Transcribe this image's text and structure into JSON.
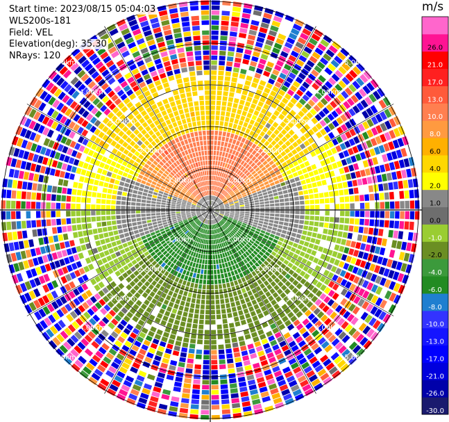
{
  "header": {
    "start_time": "Start time: 2023/08/15 05:04:03",
    "station": "WLS200s-181",
    "field": "Field: VEL",
    "elevation": "Elevation(deg): 35.30",
    "nrays": "NRays: 120"
  },
  "chart_data": {
    "type": "heatmap",
    "projection": "polar-ppi",
    "field": "VEL",
    "units": "m/s",
    "n_rays": 120,
    "elevation_deg": 35.3,
    "range_rings_km": [
      1.0,
      2.0,
      3.0,
      4.0,
      5.0
    ],
    "ring_labels": [
      "1.00km",
      "2.00km",
      "3.00km",
      "4.00km",
      "5.00km"
    ],
    "color_scale": {
      "boundaries": [
        -30.0,
        -26.0,
        -21.0,
        -17.0,
        -13.0,
        -10.0,
        -8.0,
        -6.0,
        -4.0,
        -2.0,
        -1.0,
        0.0,
        1.0,
        2.0,
        4.0,
        6.0,
        8.0,
        10.0,
        13.0,
        17.0,
        21.0,
        26.0
      ],
      "tick_labels": [
        "-30.0",
        "-26.0",
        "-21.0",
        "-17.0",
        "-13.0",
        "-10.0",
        "-8.0",
        "-6.0",
        "-4.0",
        "-2.0",
        "-1.0",
        "0.0",
        "1.0",
        "2.0",
        "4.0",
        "6.0",
        "8.0",
        "10.0",
        "13.0",
        "17.0",
        "21.0",
        "26.0"
      ],
      "colors": [
        "#1a1a6e",
        "#0000aa",
        "#0000dd",
        "#0000ff",
        "#1515ff",
        "#3333ff",
        "#1f7fd0",
        "#228b22",
        "#3c9a3c",
        "#6b8e23",
        "#9acd32",
        "#6e6e6e",
        "#888888",
        "#ffff00",
        "#ffd700",
        "#ffb000",
        "#ff9a40",
        "#ff7f50",
        "#ff5a3a",
        "#ff2020",
        "#ff0000",
        "#ff1493",
        "#ff66cc"
      ]
    },
    "near_field_pattern": [
      {
        "sector": "north",
        "range_km": [
          0.0,
          1.8
        ],
        "value": 9.0
      },
      {
        "sector": "north",
        "range_km": [
          1.8,
          3.4
        ],
        "value": 3.0
      },
      {
        "sector": "west",
        "range_km": [
          0.0,
          2.2
        ],
        "value": 0.0
      },
      {
        "sector": "east",
        "range_km": [
          0.0,
          2.2
        ],
        "value": 0.0
      },
      {
        "sector": "south",
        "range_km": [
          0.0,
          1.8
        ],
        "value": -7.0
      },
      {
        "sector": "south",
        "range_km": [
          1.8,
          3.4
        ],
        "value": -3.0
      }
    ],
    "far_field": "noise"
  }
}
